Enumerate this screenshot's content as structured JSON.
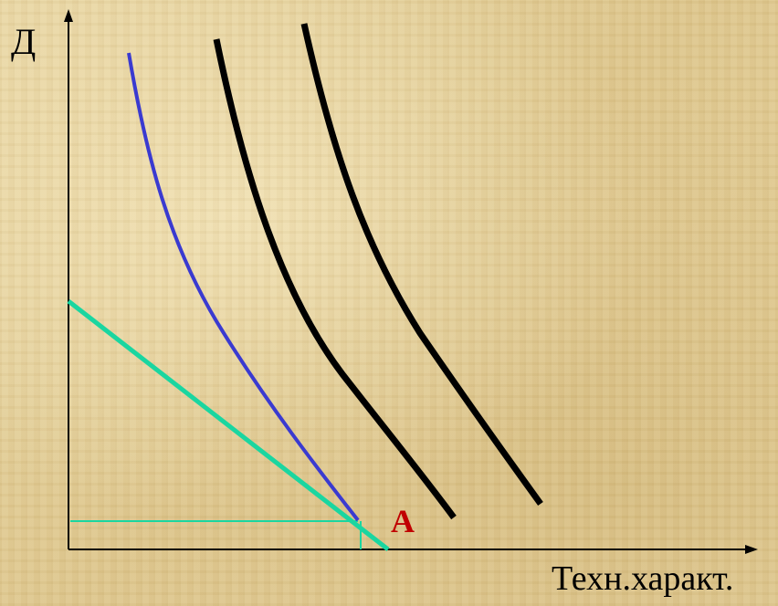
{
  "diagram": {
    "y_axis_label": "Д",
    "x_axis_label": "Техн.характ.",
    "point_label": "A",
    "colors": {
      "background": "#e2cf9c",
      "axes": "#000000",
      "indifference_curves": "#000000",
      "tangent_curve": "#3a3ad0",
      "budget_line": "#1ad6a0",
      "point_label": "#c00000"
    }
  }
}
